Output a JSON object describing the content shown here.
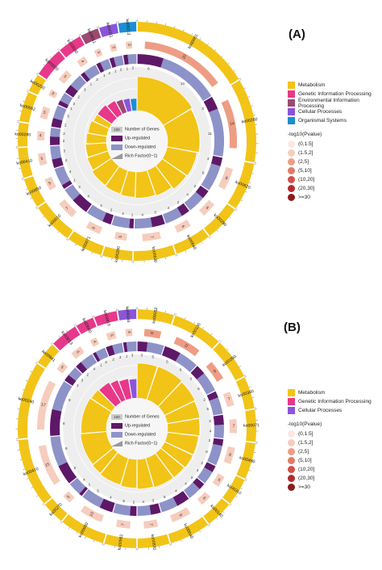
{
  "colors": {
    "Metabolism": "#f2c417",
    "Genetic Information Processing": "#e8388a",
    "Environmental Information Processing": "#9c4a72",
    "Cellular Processes": "#8b55d9",
    "Organismal Systems": "#1b8fd1",
    "up": "#5e1868",
    "down": "#8d93c8",
    "rich": "#999999",
    "pscale": [
      "#fbe9e1",
      "#f6cdbd",
      "#ee9d85",
      "#e27a66",
      "#d05148",
      "#b52a2d",
      "#8e1b1e"
    ]
  },
  "center_legend": [
    {
      "key": "count",
      "value": "100",
      "label": "Number of Genes"
    },
    {
      "key": "up",
      "value": "",
      "label": "Up-regulated"
    },
    {
      "key": "down",
      "value": "",
      "label": "Down-regulated"
    },
    {
      "key": "rich",
      "value": "",
      "label": "Rich Factor(0~1)"
    }
  ],
  "chart_data": [
    {
      "panel": "(A)",
      "type": "circos",
      "categories": [
        "Metabolism",
        "Genetic Information Processing",
        "Environmental Information Processing",
        "Cellular Processes",
        "Organismal Systems"
      ],
      "pvalue_legend_title": "-log10(Pvalue)",
      "pvalue_bins": [
        "(0,1.5]",
        "(1.5,2]",
        "(2,5]",
        "(5,10]",
        "(10,20]",
        "(20,30]",
        ">=30"
      ],
      "terms": [
        {
          "id": "ko00061",
          "category": "Metabolism",
          "genes": 20,
          "up": 6,
          "down": 14,
          "rich": 0.78,
          "pbin": 2
        },
        {
          "id": "ko00260",
          "category": "Metabolism",
          "genes": 14,
          "up": 3,
          "down": 11,
          "rich": 0.74,
          "pbin": 2
        },
        {
          "id": "ko00620",
          "category": "Metabolism",
          "genes": 8,
          "up": 2,
          "down": 6,
          "rich": 0.7,
          "pbin": 1
        },
        {
          "id": "ko00280",
          "category": "Metabolism",
          "genes": 6,
          "up": 2,
          "down": 4,
          "rich": 0.68,
          "pbin": 1
        },
        {
          "id": "ko00640",
          "category": "Metabolism",
          "genes": 6,
          "up": 2,
          "down": 4,
          "rich": 0.62,
          "pbin": 1
        },
        {
          "id": "ko00630",
          "category": "Metabolism",
          "genes": 7,
          "up": 3,
          "down": 4,
          "rich": 0.6,
          "pbin": 1
        },
        {
          "id": "ko00290",
          "category": "Metabolism",
          "genes": 5,
          "up": 1,
          "down": 4,
          "rich": 0.58,
          "pbin": 1
        },
        {
          "id": "ko00071",
          "category": "Metabolism",
          "genes": 6,
          "up": 2,
          "down": 4,
          "rich": 0.56,
          "pbin": 1
        },
        {
          "id": "ko00010",
          "category": "Metabolism",
          "genes": 7,
          "up": 4,
          "down": 3,
          "rich": 0.54,
          "pbin": 1
        },
        {
          "id": "ko00650",
          "category": "Metabolism",
          "genes": 5,
          "up": 1,
          "down": 4,
          "rich": 0.5,
          "pbin": 1
        },
        {
          "id": "ko00410",
          "category": "Metabolism",
          "genes": 5,
          "up": 2,
          "down": 3,
          "rich": 0.48,
          "pbin": 1
        },
        {
          "id": "ko00280",
          "category": "Metabolism",
          "genes": 4,
          "up": 2,
          "down": 2,
          "rich": 0.46,
          "pbin": 1
        },
        {
          "id": "ko00062",
          "category": "Metabolism",
          "genes": 5,
          "up": 2,
          "down": 3,
          "rich": 0.44,
          "pbin": 1
        },
        {
          "id": "ko00250",
          "category": "Metabolism",
          "genes": 3,
          "up": 1,
          "down": 2,
          "rich": 0.4,
          "pbin": 1
        },
        {
          "id": "ko03020",
          "category": "Genetic Information Processing",
          "genes": 5,
          "up": 2,
          "down": 3,
          "rich": 0.4,
          "pbin": 1
        },
        {
          "id": "ko03030",
          "category": "Genetic Information Processing",
          "genes": 4,
          "up": 1,
          "down": 3,
          "rich": 0.36,
          "pbin": 1
        },
        {
          "id": "ko04011",
          "category": "Environmental Information Processing",
          "genes": 3,
          "up": 1,
          "down": 2,
          "rich": 0.32,
          "pbin": 1
        },
        {
          "id": "ko04111",
          "category": "Cellular Processes",
          "genes": 3,
          "up": 1,
          "down": 2,
          "rich": 0.3,
          "pbin": 1
        },
        {
          "id": "ko04213",
          "category": "Organismal Systems",
          "genes": 3,
          "up": 1,
          "down": 2,
          "rich": 0.28,
          "pbin": 1
        }
      ]
    },
    {
      "panel": "(B)",
      "type": "circos",
      "categories": [
        "Metabolism",
        "Genetic Information Processing",
        "Cellular Processes"
      ],
      "pvalue_legend_title": "-log10(Pvalue)",
      "pvalue_bins": [
        "(0,1.5]",
        "(1.5,2]",
        "(2,5]",
        "(5,10]",
        "(10,20]",
        "(20,30]",
        ">=30"
      ],
      "terms": [
        {
          "id": "ko00053",
          "category": "Metabolism",
          "genes": 8,
          "up": 3,
          "down": 5,
          "rich": 0.8,
          "pbin": 2
        },
        {
          "id": "ko00130",
          "category": "Metabolism",
          "genes": 11,
          "up": 5,
          "down": 6,
          "rich": 0.8,
          "pbin": 2
        },
        {
          "id": "ko00350",
          "category": "Metabolism",
          "genes": 9,
          "up": 3,
          "down": 6,
          "rich": 0.78,
          "pbin": 2
        },
        {
          "id": "ko00380",
          "category": "Metabolism",
          "genes": 7,
          "up": 2,
          "down": 5,
          "rich": 0.76,
          "pbin": 1
        },
        {
          "id": "ko00071",
          "category": "Metabolism",
          "genes": 7,
          "up": 3,
          "down": 4,
          "rich": 0.74,
          "pbin": 1
        },
        {
          "id": "ko00480",
          "category": "Metabolism",
          "genes": 8,
          "up": 2,
          "down": 6,
          "rich": 0.72,
          "pbin": 1
        },
        {
          "id": "ko00310",
          "category": "Metabolism",
          "genes": 6,
          "up": 2,
          "down": 4,
          "rich": 0.72,
          "pbin": 1
        },
        {
          "id": "ko00140",
          "category": "Metabolism",
          "genes": 6,
          "up": 2,
          "down": 4,
          "rich": 0.7,
          "pbin": 1
        },
        {
          "id": "ko00040",
          "category": "Metabolism",
          "genes": 9,
          "up": 4,
          "down": 5,
          "rich": 0.7,
          "pbin": 1
        },
        {
          "id": "ko00830",
          "category": "Metabolism",
          "genes": 7,
          "up": 3,
          "down": 4,
          "rich": 0.68,
          "pbin": 1
        },
        {
          "id": "ko00982",
          "category": "Metabolism",
          "genes": 7,
          "up": 2,
          "down": 5,
          "rich": 0.66,
          "pbin": 1
        },
        {
          "id": "ko00980",
          "category": "Metabolism",
          "genes": 10,
          "up": 4,
          "down": 6,
          "rich": 0.64,
          "pbin": 1
        },
        {
          "id": "ko00270",
          "category": "Metabolism",
          "genes": 5,
          "up": 1,
          "down": 4,
          "rich": 0.62,
          "pbin": 1
        },
        {
          "id": "ko00410",
          "category": "Metabolism",
          "genes": 15,
          "up": 6,
          "down": 9,
          "rich": 0.6,
          "pbin": 1
        },
        {
          "id": "ko00240",
          "category": "Metabolism",
          "genes": 17,
          "up": 8,
          "down": 9,
          "rich": 0.58,
          "pbin": 1
        },
        {
          "id": "ko00941",
          "category": "Metabolism",
          "genes": 5,
          "up": 2,
          "down": 3,
          "rich": 0.56,
          "pbin": 1
        },
        {
          "id": "ko03013",
          "category": "Genetic Information Processing",
          "genes": 6,
          "up": 2,
          "down": 4,
          "rich": 0.54,
          "pbin": 1
        },
        {
          "id": "ko03060",
          "category": "Genetic Information Processing",
          "genes": 4,
          "up": 1,
          "down": 3,
          "rich": 0.5,
          "pbin": 1
        },
        {
          "id": "ko03410",
          "category": "Genetic Information Processing",
          "genes": 5,
          "up": 2,
          "down": 3,
          "rich": 0.46,
          "pbin": 1
        },
        {
          "id": "ko04146",
          "category": "Cellular Processes",
          "genes": 4,
          "up": 1,
          "down": 3,
          "rich": 0.44,
          "pbin": 1
        }
      ]
    }
  ]
}
